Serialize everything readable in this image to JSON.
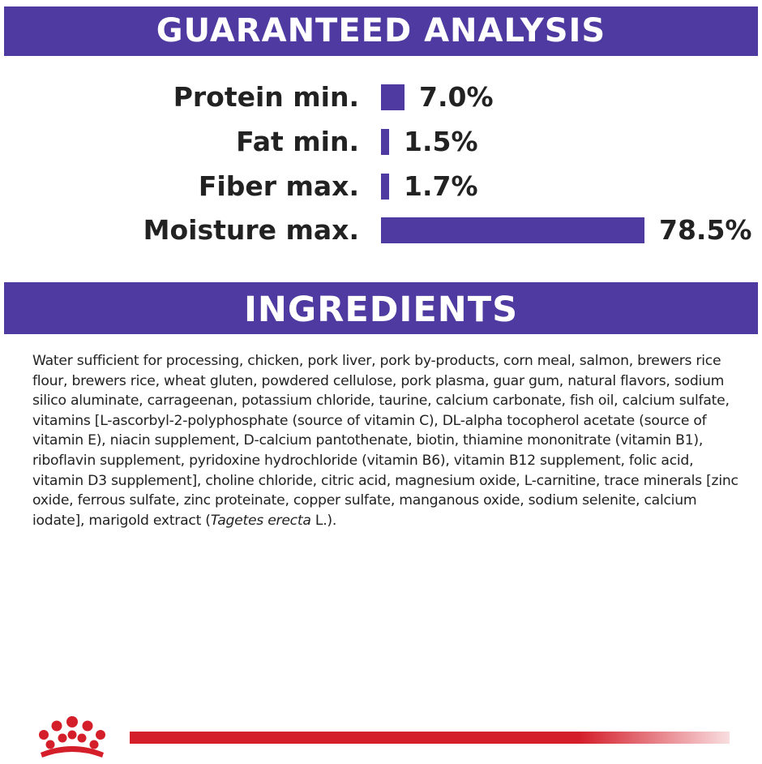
{
  "guaranteed_analysis": {
    "title": "GUARANTEED ANALYSIS",
    "bar_color": "#4e3aa0",
    "rows": [
      {
        "label": "Protein min.",
        "value": "7.0%",
        "percent": 7.0
      },
      {
        "label": "Fat min.",
        "value": "1.5%",
        "percent": 1.5
      },
      {
        "label": "Fiber max.",
        "value": "1.7%",
        "percent": 1.7
      },
      {
        "label": "Moisture max.",
        "value": "78.5%",
        "percent": 78.5
      }
    ]
  },
  "ingredients": {
    "title": "INGREDIENTS",
    "text_main": "Water sufficient for processing, chicken, pork liver, pork by-products, corn meal, salmon, brewers rice flour, brewers rice, wheat gluten, powdered cellulose, pork plasma, guar gum, natural flavors, sodium silico aluminate, carrageenan, potassium chloride, taurine, calcium carbonate, fish oil, calcium sulfate, vitamins [L-ascorbyl-2-polyphosphate (source of vitamin C), DL-alpha tocopherol acetate (source of vitamin E), niacin supplement, D-calcium pantothenate, biotin, thiamine mononitrate (vitamin B1), riboflavin supplement, pyridoxine hydrochloride (vitamin B6), vitamin B12 supplement, folic acid, vitamin D3 supplement], choline chloride, citric acid, magnesium oxide, L-carnitine, trace minerals [zinc oxide, ferrous sulfate, zinc proteinate, copper sulfate, manganous oxide, sodium selenite, calcium iodate], marigold extract (",
    "scientific_name": "Tagetes erecta",
    "text_end": " L.)."
  },
  "footer": {
    "accent_color": "#d41f2b",
    "logo_icon": "crown-logo-icon"
  }
}
